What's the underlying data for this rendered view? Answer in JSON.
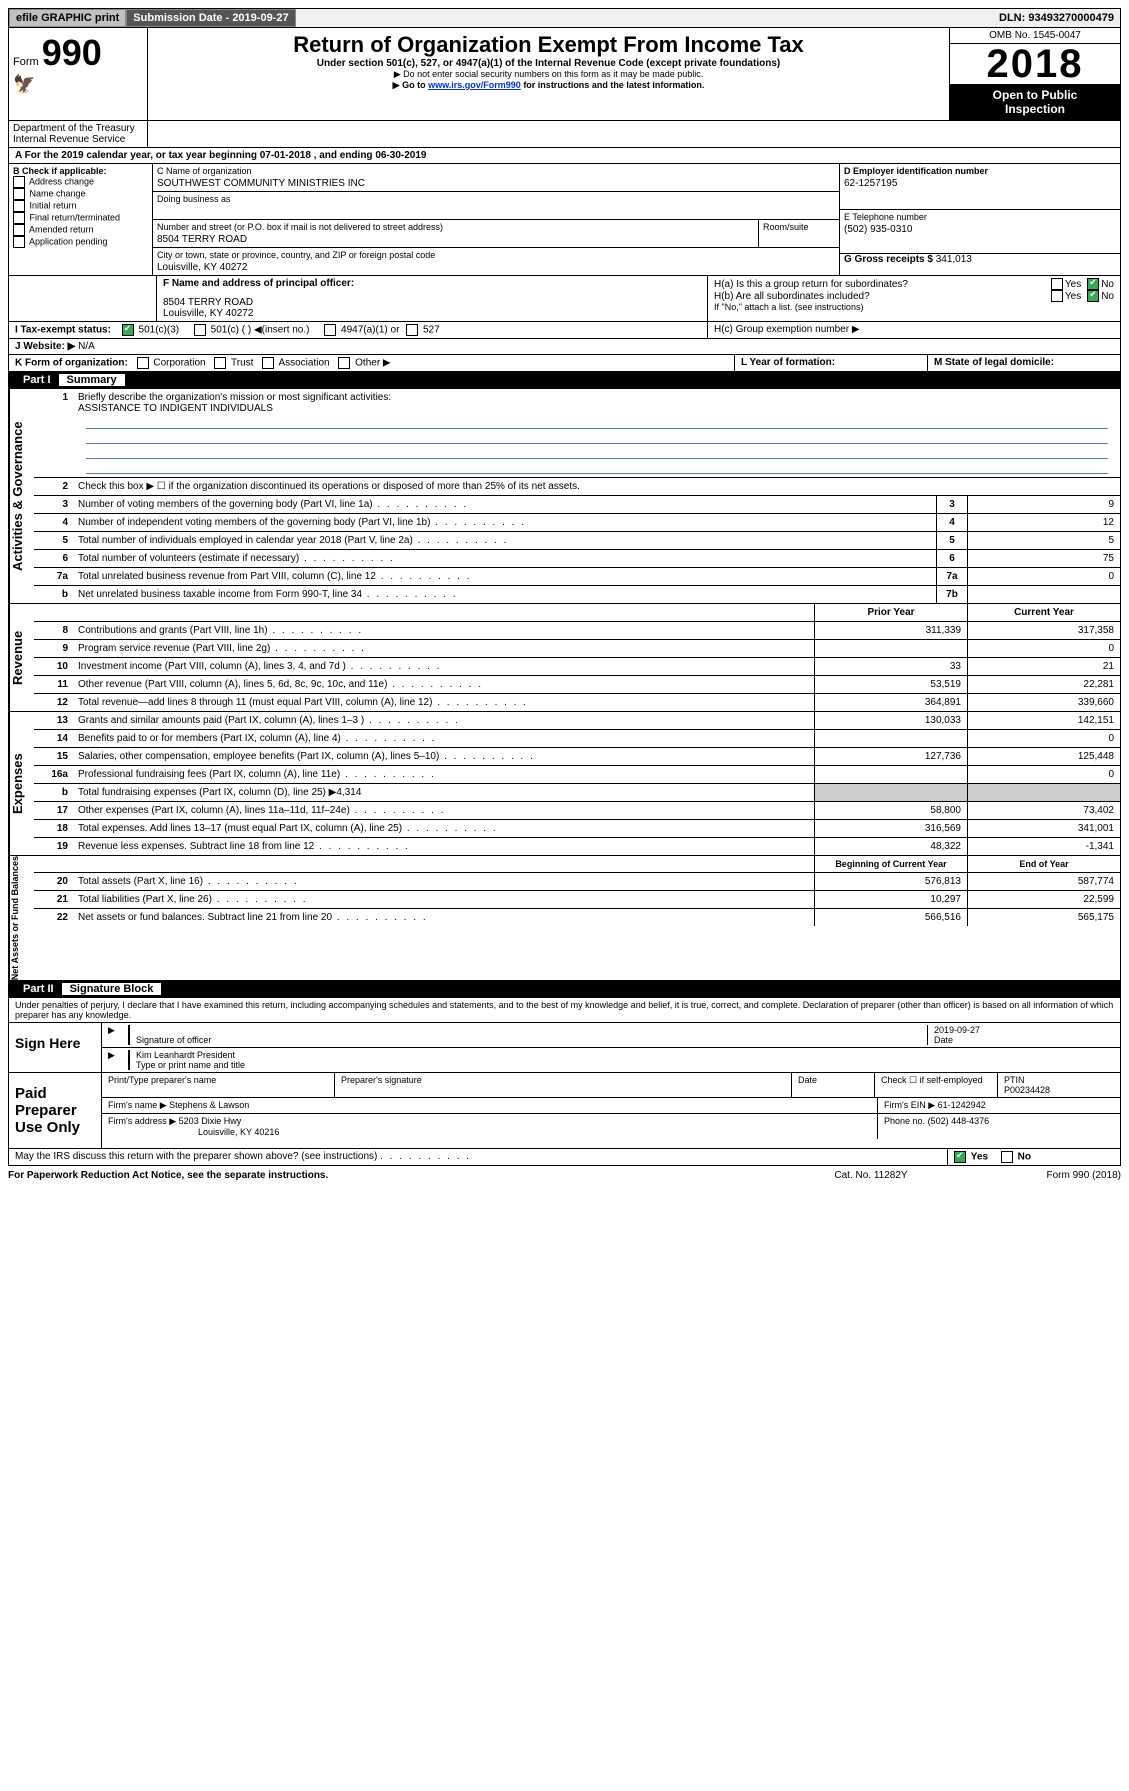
{
  "topbar": {
    "efile": "efile GRAPHIC print",
    "sub_label": "Submission Date - 2019-09-27",
    "dln_label": "DLN: 93493270000479"
  },
  "header": {
    "form_word": "Form",
    "form_no": "990",
    "title": "Return of Organization Exempt From Income Tax",
    "sub1": "Under section 501(c), 527, or 4947(a)(1) of the Internal Revenue Code (except private foundations)",
    "sub2": "▶ Do not enter social security numbers on this form as it may be made public.",
    "sub3_prefix": "▶ Go to ",
    "sub3_link": "www.irs.gov/Form990",
    "sub3_suffix": " for instructions and the latest information.",
    "omb": "OMB No. 1545-0047",
    "year": "2018",
    "open1": "Open to Public",
    "open2": "Inspection",
    "dept": "Department of the Treasury",
    "irs": "Internal Revenue Service"
  },
  "section_a": "A For the 2019 calendar year, or tax year beginning 07-01-2018   , and ending 06-30-2019",
  "box_b": {
    "title": "B Check if applicable:",
    "opts": [
      "Address change",
      "Name change",
      "Initial return",
      "Final return/terminated",
      "Amended return",
      "Application pending"
    ]
  },
  "box_c": {
    "name_label": "C Name of organization",
    "name": "SOUTHWEST COMMUNITY MINISTRIES INC",
    "dba_label": "Doing business as",
    "addr_label": "Number and street (or P.O. box if mail is not delivered to street address)",
    "room_label": "Room/suite",
    "addr": "8504 TERRY ROAD",
    "city_label": "City or town, state or province, country, and ZIP or foreign postal code",
    "city": "Louisville, KY  40272"
  },
  "box_d": {
    "label": "D Employer identification number",
    "val": "62-1257195"
  },
  "box_e": {
    "label": "E Telephone number",
    "val": "(502) 935-0310"
  },
  "box_g": {
    "label": "G Gross receipts $",
    "val": "341,013"
  },
  "box_f": {
    "label": "F  Name and address of principal officer:",
    "l1": "8504 TERRY ROAD",
    "l2": "Louisville, KY  40272"
  },
  "box_h": {
    "a": "H(a)  Is this a group return for subordinates?",
    "b": "H(b)  Are all subordinates included?",
    "b_note": "If \"No,\" attach a list. (see instructions)",
    "c": "H(c)  Group exemption number ▶",
    "yes": "Yes",
    "no": "No"
  },
  "row_i": {
    "label": "I    Tax-exempt status:",
    "o1": "501(c)(3)",
    "o2": "501(c) (  ) ◀(insert no.)",
    "o3": "4947(a)(1) or",
    "o4": "527"
  },
  "row_j": {
    "label": "J   Website: ▶",
    "val": "N/A"
  },
  "row_k": {
    "label": "K Form of organization:",
    "o1": "Corporation",
    "o2": "Trust",
    "o3": "Association",
    "o4": "Other ▶"
  },
  "row_l": {
    "label": "L Year of formation:"
  },
  "row_m": {
    "label": "M State of legal domicile:"
  },
  "part1": {
    "label": "Part I",
    "title": "Summary"
  },
  "side": {
    "ag": "Activities & Governance",
    "rev": "Revenue",
    "exp": "Expenses",
    "net": "Net Assets or Fund Balances"
  },
  "l1": {
    "t": "Briefly describe the organization's mission or most significant activities:",
    "v": "ASSISTANCE TO INDIGENT INDIVIDUALS"
  },
  "l2": "Check this box ▶ ☐  if the organization discontinued its operations or disposed of more than 25% of its net assets.",
  "lines_ag": [
    {
      "n": "3",
      "t": "Number of voting members of the governing body (Part VI, line 1a)",
      "b": "3",
      "v": "9"
    },
    {
      "n": "4",
      "t": "Number of independent voting members of the governing body (Part VI, line 1b)",
      "b": "4",
      "v": "12"
    },
    {
      "n": "5",
      "t": "Total number of individuals employed in calendar year 2018 (Part V, line 2a)",
      "b": "5",
      "v": "5"
    },
    {
      "n": "6",
      "t": "Total number of volunteers (estimate if necessary)",
      "b": "6",
      "v": "75"
    },
    {
      "n": "7a",
      "t": "Total unrelated business revenue from Part VIII, column (C), line 12",
      "b": "7a",
      "v": "0"
    },
    {
      "n": "b",
      "t": "Net unrelated business taxable income from Form 990-T, line 34",
      "b": "7b",
      "v": ""
    }
  ],
  "col_heads": {
    "py": "Prior Year",
    "cy": "Current Year",
    "by": "Beginning of Current Year",
    "ey": "End of Year"
  },
  "lines_rev": [
    {
      "n": "8",
      "t": "Contributions and grants (Part VIII, line 1h)",
      "py": "311,339",
      "cy": "317,358"
    },
    {
      "n": "9",
      "t": "Program service revenue (Part VIII, line 2g)",
      "py": "",
      "cy": "0"
    },
    {
      "n": "10",
      "t": "Investment income (Part VIII, column (A), lines 3, 4, and 7d )",
      "py": "33",
      "cy": "21"
    },
    {
      "n": "11",
      "t": "Other revenue (Part VIII, column (A), lines 5, 6d, 8c, 9c, 10c, and 11e)",
      "py": "53,519",
      "cy": "22,281"
    },
    {
      "n": "12",
      "t": "Total revenue—add lines 8 through 11 (must equal Part VIII, column (A), line 12)",
      "py": "364,891",
      "cy": "339,660"
    }
  ],
  "lines_exp": [
    {
      "n": "13",
      "t": "Grants and similar amounts paid (Part IX, column (A), lines 1–3 )",
      "py": "130,033",
      "cy": "142,151"
    },
    {
      "n": "14",
      "t": "Benefits paid to or for members (Part IX, column (A), line 4)",
      "py": "",
      "cy": "0"
    },
    {
      "n": "15",
      "t": "Salaries, other compensation, employee benefits (Part IX, column (A), lines 5–10)",
      "py": "127,736",
      "cy": "125,448"
    },
    {
      "n": "16a",
      "t": "Professional fundraising fees (Part IX, column (A), line 11e)",
      "py": "",
      "cy": "0"
    },
    {
      "n": "b",
      "t": "Total fundraising expenses (Part IX, column (D), line 25) ▶4,314",
      "grey": true
    },
    {
      "n": "17",
      "t": "Other expenses (Part IX, column (A), lines 11a–11d, 11f–24e)",
      "py": "58,800",
      "cy": "73,402"
    },
    {
      "n": "18",
      "t": "Total expenses. Add lines 13–17 (must equal Part IX, column (A), line 25)",
      "py": "316,569",
      "cy": "341,001"
    },
    {
      "n": "19",
      "t": "Revenue less expenses. Subtract line 18 from line 12",
      "py": "48,322",
      "cy": "-1,341"
    }
  ],
  "lines_net": [
    {
      "n": "20",
      "t": "Total assets (Part X, line 16)",
      "py": "576,813",
      "cy": "587,774"
    },
    {
      "n": "21",
      "t": "Total liabilities (Part X, line 26)",
      "py": "10,297",
      "cy": "22,599"
    },
    {
      "n": "22",
      "t": "Net assets or fund balances. Subtract line 21 from line 20",
      "py": "566,516",
      "cy": "565,175"
    }
  ],
  "part2": {
    "label": "Part II",
    "title": "Signature Block"
  },
  "perjury": "Under penalties of perjury, I declare that I have examined this return, including accompanying schedules and statements, and to the best of my knowledge and belief, it is true, correct, and complete. Declaration of preparer (other than officer) is based on all information of which preparer has any knowledge.",
  "sign": {
    "here": "Sign Here",
    "sig_label": "Signature of officer",
    "date_label": "Date",
    "date": "2019-09-27",
    "name": "Kim Leanhardt  President",
    "name_label": "Type or print name and title"
  },
  "paid": {
    "title": "Paid Preparer Use Only",
    "c1": "Print/Type preparer's name",
    "c2": "Preparer's signature",
    "c3": "Date",
    "c4a": "Check ☐  if self-employed",
    "c4b": "PTIN",
    "ptin": "P00234428",
    "firm_label": "Firm's name    ▶",
    "firm": "Stephens & Lawson",
    "ein_label": "Firm's EIN ▶",
    "ein": "61-1242942",
    "addr_label": "Firm's address ▶",
    "addr1": "5203 Dixie Hwy",
    "addr2": "Louisville, KY  40216",
    "phone_label": "Phone no.",
    "phone": "(502) 448-4376"
  },
  "discuss": "May the IRS discuss this return with the preparer shown above? (see instructions)",
  "footer": {
    "l": "For Paperwork Reduction Act Notice, see the separate instructions.",
    "m": "Cat. No. 11282Y",
    "r": "Form 990 (2018)"
  }
}
